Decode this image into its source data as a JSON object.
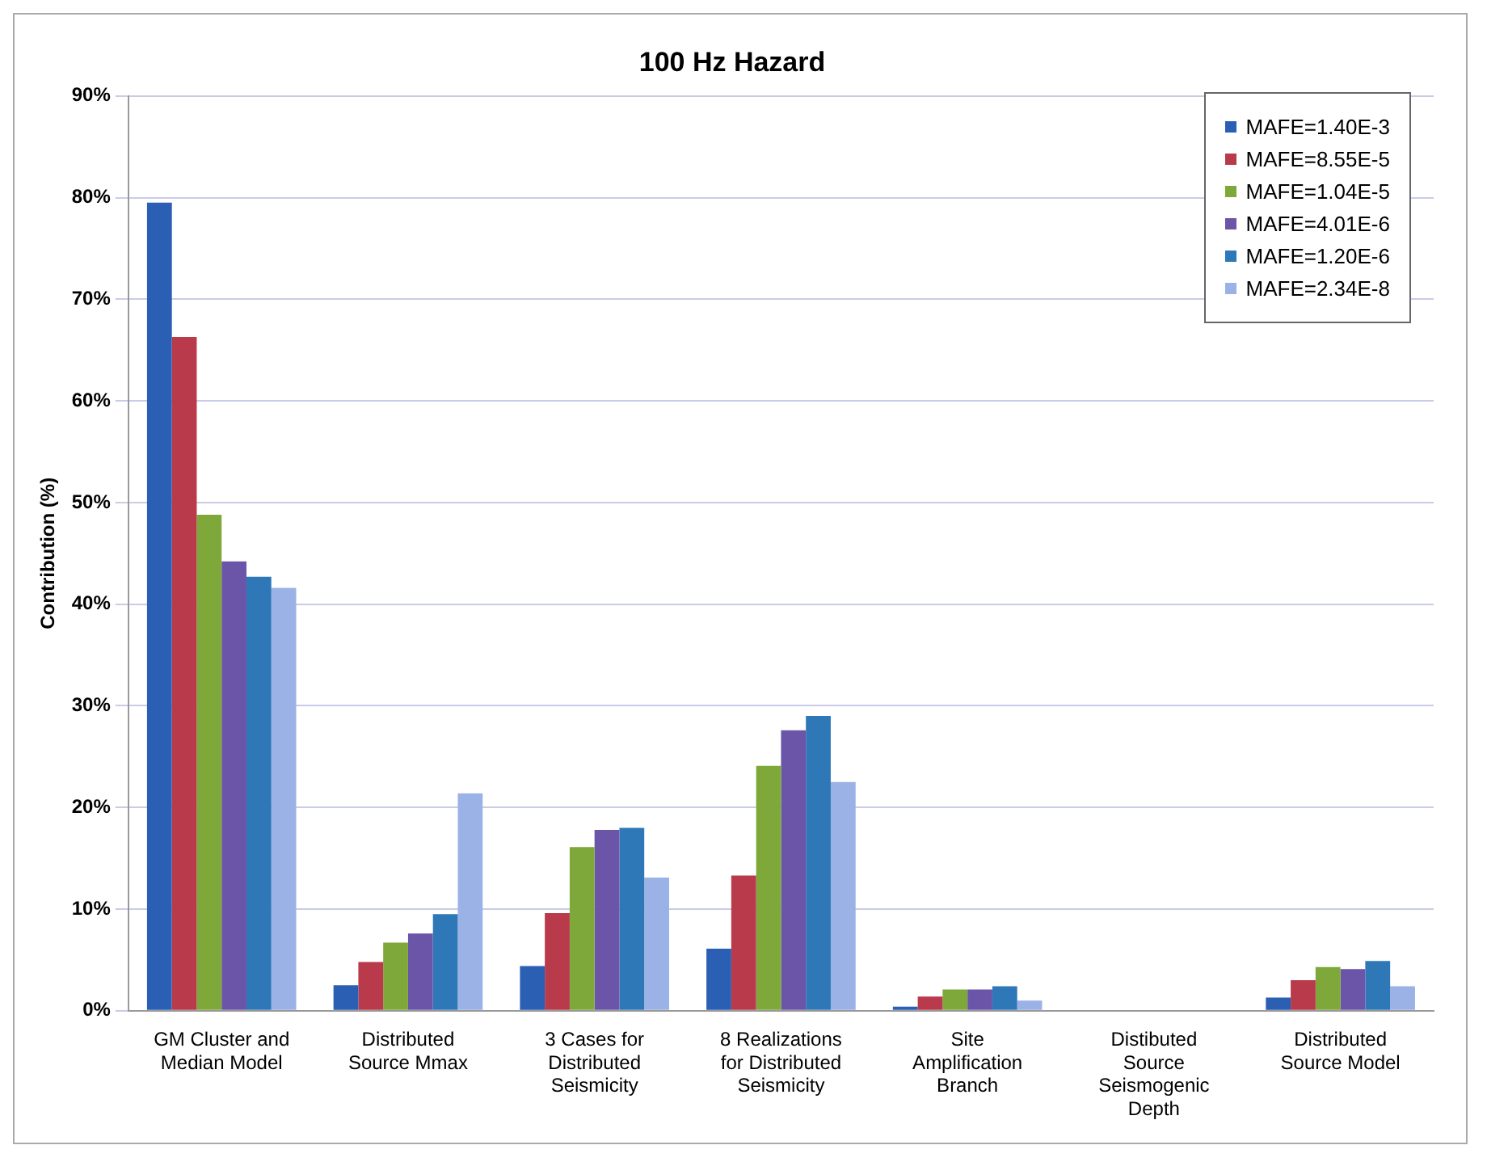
{
  "chart_data": {
    "type": "bar",
    "title": "100 Hz Hazard",
    "ylabel": "Contribution (%)",
    "categories": [
      "GM Cluster and Median Model",
      "Distributed Source Mmax",
      "3 Cases for Distributed Seismicity",
      "8 Realizations for Distributed Seismicity",
      "Site Amplification Branch",
      "Distibuted Source Seismogenic Depth",
      "Distributed Source Model"
    ],
    "series": [
      {
        "name": "MAFE=1.40E-3",
        "color": "#2b5fb4",
        "values": [
          79.5,
          2.5,
          4.4,
          6.1,
          0.4,
          0,
          1.3
        ]
      },
      {
        "name": "MAFE=8.55E-5",
        "color": "#b83a4b",
        "values": [
          66.3,
          4.8,
          9.6,
          13.3,
          1.4,
          0,
          3.0
        ]
      },
      {
        "name": "MAFE=1.04E-5",
        "color": "#7fa83a",
        "values": [
          48.8,
          6.7,
          16.1,
          24.1,
          2.1,
          0,
          4.3
        ]
      },
      {
        "name": "MAFE=4.01E-6",
        "color": "#6a55a8",
        "values": [
          44.2,
          7.6,
          17.8,
          27.6,
          2.1,
          0,
          4.1
        ]
      },
      {
        "name": "MAFE=1.20E-6",
        "color": "#2f78b8",
        "values": [
          42.7,
          9.5,
          18.0,
          29.0,
          2.4,
          0,
          4.9
        ]
      },
      {
        "name": "MAFE=2.34E-8",
        "color": "#9ab2e6",
        "values": [
          41.6,
          21.4,
          13.1,
          22.5,
          1.0,
          0,
          2.4
        ]
      }
    ],
    "ylim": [
      0,
      90
    ],
    "yticks": [
      {
        "value": 0,
        "label": "0%"
      },
      {
        "value": 10,
        "label": "10%"
      },
      {
        "value": 20,
        "label": "20%"
      },
      {
        "value": 30,
        "label": "30%"
      },
      {
        "value": 40,
        "label": "40%"
      },
      {
        "value": 50,
        "label": "50%"
      },
      {
        "value": 60,
        "label": "60%"
      },
      {
        "value": 70,
        "label": "70%"
      },
      {
        "value": 80,
        "label": "80%"
      },
      {
        "value": 90,
        "label": "90%"
      }
    ],
    "grid": "y",
    "legend": "top right"
  }
}
